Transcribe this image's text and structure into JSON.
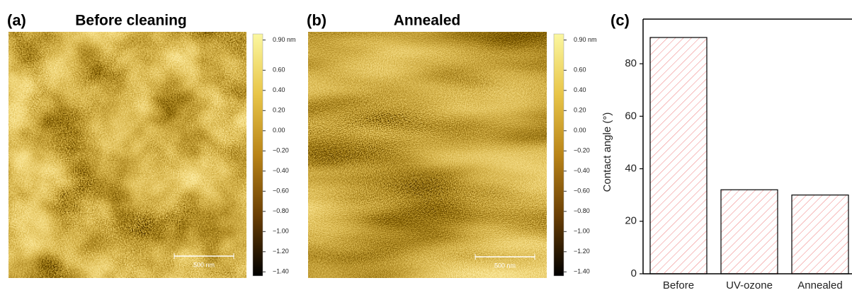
{
  "panels": [
    {
      "label": "(a)",
      "title": "Before cleaning",
      "scale_bar": "500 nm",
      "clim": [
        -1.44,
        0.96
      ],
      "colorbar_ticks": [
        {
          "value": 0.9,
          "label": "0.90 nm"
        },
        {
          "value": 0.6,
          "label": "0.60"
        },
        {
          "value": 0.4,
          "label": "0.40"
        },
        {
          "value": 0.2,
          "label": "0.20"
        },
        {
          "value": 0,
          "label": "0.00"
        },
        {
          "value": -0.2,
          "label": "−0.20"
        },
        {
          "value": -0.4,
          "label": "−0.40"
        },
        {
          "value": -0.6,
          "label": "−0.60"
        },
        {
          "value": -0.8,
          "label": "−0.80"
        },
        {
          "value": -1,
          "label": "−1.00"
        },
        {
          "value": -1.2,
          "label": "−1.20"
        },
        {
          "value": -1.4,
          "label": "−1.40"
        }
      ]
    },
    {
      "label": "(b)",
      "title": "Annealed",
      "scale_bar": "500 nm",
      "clim": [
        -1.44,
        0.96
      ],
      "colorbar_ticks": [
        {
          "value": 0.9,
          "label": "0.90 nm"
        },
        {
          "value": 0.6,
          "label": "0.60"
        },
        {
          "value": 0.4,
          "label": "0.40"
        },
        {
          "value": 0.2,
          "label": "0.20"
        },
        {
          "value": 0,
          "label": "0.00"
        },
        {
          "value": -0.2,
          "label": "−0.20"
        },
        {
          "value": -0.4,
          "label": "−0.40"
        },
        {
          "value": -0.6,
          "label": "−0.60"
        },
        {
          "value": -0.8,
          "label": "−0.80"
        },
        {
          "value": -1,
          "label": "−1.00"
        },
        {
          "value": -1.2,
          "label": "−1.20"
        },
        {
          "value": -1.4,
          "label": "−1.40"
        }
      ]
    }
  ],
  "chart_data": {
    "type": "bar",
    "label": "(c)",
    "ylabel": "Contact angle (°)",
    "categories": [
      "Before",
      "UV-ozone",
      "Annealed"
    ],
    "values": [
      90,
      32,
      30
    ],
    "color": "#f07f7f",
    "edgecolor": "#000000",
    "ylim": [
      0,
      97
    ],
    "yticks": [
      0,
      20,
      40,
      60,
      80
    ]
  }
}
